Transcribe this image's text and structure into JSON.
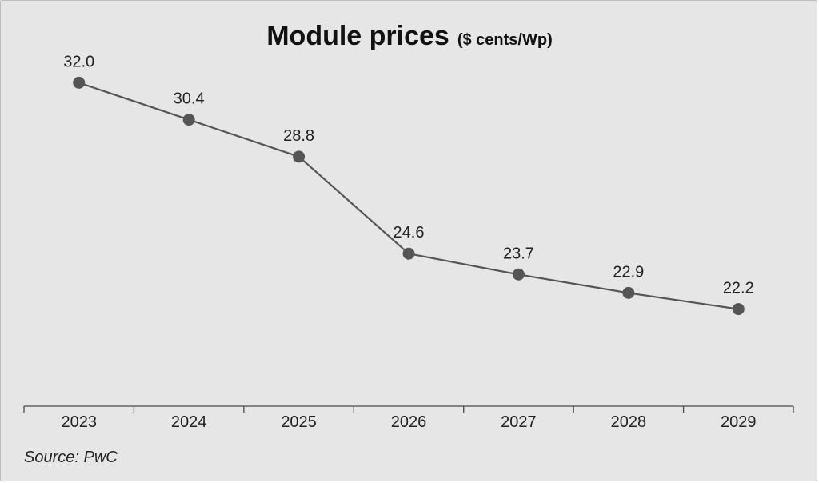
{
  "chart_data": {
    "type": "line",
    "title": "Module prices",
    "subtitle": "($ cents/Wp)",
    "categories": [
      "2023",
      "2024",
      "2025",
      "2026",
      "2027",
      "2028",
      "2029"
    ],
    "series": [
      {
        "values": [
          32.0,
          30.4,
          28.8,
          24.6,
          23.7,
          22.9,
          22.2
        ],
        "labels": [
          "32.0",
          "30.4",
          "28.8",
          "24.6",
          "23.7",
          "22.9",
          "22.2"
        ]
      }
    ],
    "ylim": [
      18,
      33.5
    ],
    "grid": false,
    "legend": "none",
    "colors": {
      "line": "#555555",
      "marker": "#555555",
      "background": "#e6e6e7"
    }
  },
  "source": "Source: PwC"
}
